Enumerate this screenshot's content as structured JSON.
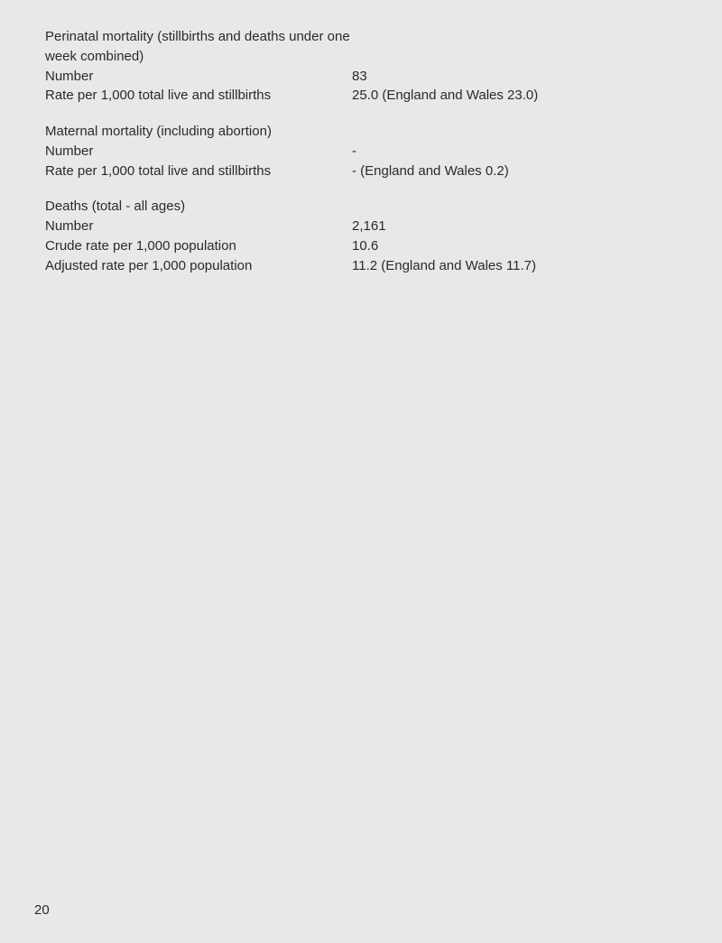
{
  "sections": [
    {
      "heading": "Perinatal mortality (stillbirths and deaths under one week combined)",
      "rows": [
        {
          "label": "Number",
          "value": "83"
        },
        {
          "label": "Rate per 1,000 total live and stillbirths",
          "value": "25.0 (England and Wales 23.0)"
        }
      ]
    },
    {
      "heading": "Maternal mortality (including abortion)",
      "rows": [
        {
          "label": "Number",
          "value": "-"
        },
        {
          "label": "Rate per 1,000 total live and stillbirths",
          "value": "- (England and Wales 0.2)"
        }
      ]
    },
    {
      "heading": "Deaths (total - all ages)",
      "rows": [
        {
          "label": "Number",
          "value": "2,161"
        },
        {
          "label": "Crude rate per 1,000 population",
          "value": "10.6"
        },
        {
          "label": "Adjusted rate per 1,000 population",
          "value": "11.2 (England and Wales 11.7)"
        }
      ]
    }
  ],
  "page_number": "20"
}
